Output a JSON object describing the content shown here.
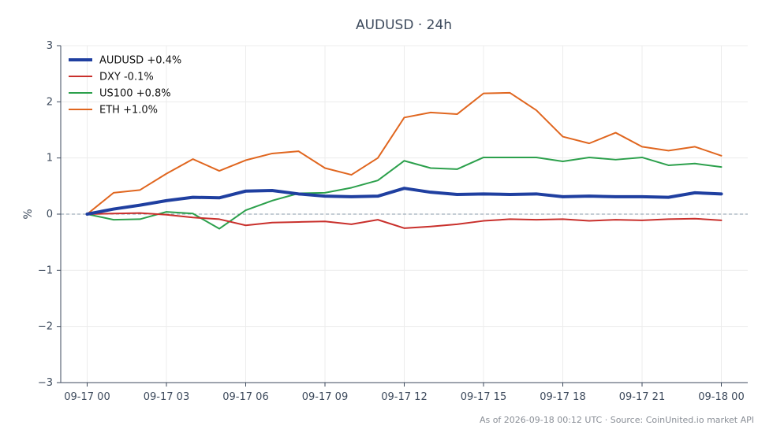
{
  "chart_data": {
    "type": "line",
    "title": "AUDUSD · 24h",
    "xlabel": "",
    "ylabel": "%",
    "ylim": [
      -3,
      3
    ],
    "xlim": [
      -1,
      25
    ],
    "yticks": [
      -3,
      -2,
      -1,
      0,
      1,
      2,
      3
    ],
    "ytick_labels": [
      "−3",
      "−2",
      "−1",
      "0",
      "1",
      "2",
      "3"
    ],
    "xticks": [
      0,
      3,
      6,
      9,
      12,
      15,
      18,
      21,
      24
    ],
    "xtick_labels": [
      "09-17 00",
      "09-17 03",
      "09-17 06",
      "09-17 09",
      "09-17 12",
      "09-17 15",
      "09-17 18",
      "09-17 21",
      "09-18 00"
    ],
    "x": [
      0,
      1,
      2,
      3,
      4,
      5,
      6,
      7,
      8,
      9,
      10,
      11,
      12,
      13,
      14,
      15,
      16,
      17,
      18,
      19,
      20,
      21,
      22,
      23,
      24
    ],
    "grid": true,
    "zero_line": true,
    "legend_position": "top-left",
    "series": [
      {
        "name": "AUDUSD +0.4%",
        "color": "#1f3fa0",
        "width": 4,
        "values": [
          0.0,
          0.09,
          0.16,
          0.24,
          0.3,
          0.29,
          0.41,
          0.42,
          0.36,
          0.32,
          0.31,
          0.32,
          0.46,
          0.39,
          0.35,
          0.36,
          0.35,
          0.36,
          0.31,
          0.32,
          0.31,
          0.31,
          0.3,
          0.38,
          0.36
        ]
      },
      {
        "name": "DXY -0.1%",
        "color": "#c9302c",
        "width": 2,
        "values": [
          0.0,
          0.01,
          0.02,
          -0.01,
          -0.06,
          -0.09,
          -0.2,
          -0.15,
          -0.14,
          -0.13,
          -0.18,
          -0.1,
          -0.25,
          -0.22,
          -0.18,
          -0.12,
          -0.09,
          -0.1,
          -0.09,
          -0.12,
          -0.1,
          -0.11,
          -0.09,
          -0.08,
          -0.11
        ]
      },
      {
        "name": "US100 +0.8%",
        "color": "#2ca04c",
        "width": 2,
        "values": [
          0.0,
          -0.1,
          -0.09,
          0.04,
          0.01,
          -0.26,
          0.07,
          0.24,
          0.37,
          0.38,
          0.47,
          0.6,
          0.95,
          0.82,
          0.8,
          1.01,
          1.01,
          1.01,
          0.94,
          1.01,
          0.97,
          1.01,
          0.87,
          0.9,
          0.84
        ]
      },
      {
        "name": "ETH +1.0%",
        "color": "#e0661f",
        "width": 2,
        "values": [
          0.0,
          0.38,
          0.43,
          0.72,
          0.98,
          0.77,
          0.96,
          1.08,
          1.12,
          0.82,
          0.7,
          1.0,
          1.72,
          1.81,
          1.78,
          2.15,
          2.16,
          1.85,
          1.38,
          1.26,
          1.45,
          1.2,
          1.13,
          1.2,
          1.04
        ]
      }
    ],
    "source_note": "As of 2026-09-18 00:12 UTC · Source: CoinUnited.io market API"
  }
}
